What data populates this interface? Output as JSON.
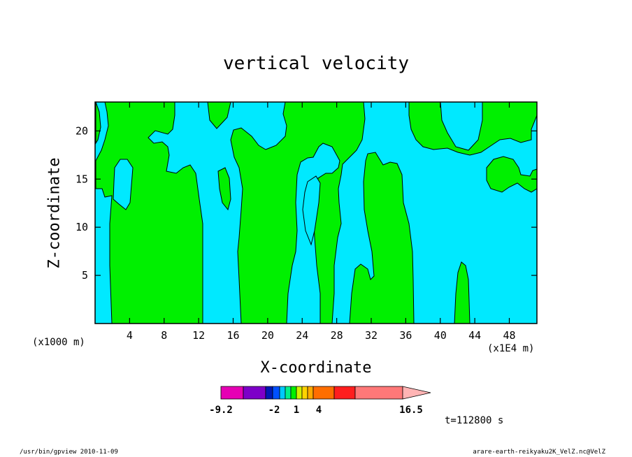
{
  "chart_data": {
    "type": "contour",
    "title": "vertical velocity",
    "xlabel": "X-coordinate",
    "ylabel": "Z-coordinate",
    "x_unit_left": "(x1000 m)",
    "x_unit_right": "(x1E4 m)",
    "xlim": [
      0,
      51.2
    ],
    "ylim": [
      0,
      23
    ],
    "x_ticks": [
      "4",
      "8",
      "12",
      "16",
      "20",
      "24",
      "28",
      "32",
      "36",
      "40",
      "44",
      "48"
    ],
    "y_ticks": [
      "5",
      "10",
      "15",
      "20"
    ],
    "fill_colors": {
      "negative": "#00e9ff",
      "positive": "#00f000"
    },
    "colorbar": {
      "labels": [
        "-9.2",
        "-2",
        "1",
        "4",
        "16.5"
      ],
      "colors": [
        "#e600b4",
        "#7d00c8",
        "#0018b4",
        "#0050ff",
        "#00c8ff",
        "#00f08c",
        "#00f000",
        "#d2f000",
        "#ffd200",
        "#ffaa00",
        "#ff6e00",
        "#ff1e1e",
        "#ff7878",
        "#ffb4b4"
      ]
    },
    "time": "t=112800 s"
  },
  "footer": {
    "left": "/usr/bin/gpview  2010-11-09",
    "right": "arare-earth-reikyaku2K_VelZ.nc@VelZ"
  }
}
